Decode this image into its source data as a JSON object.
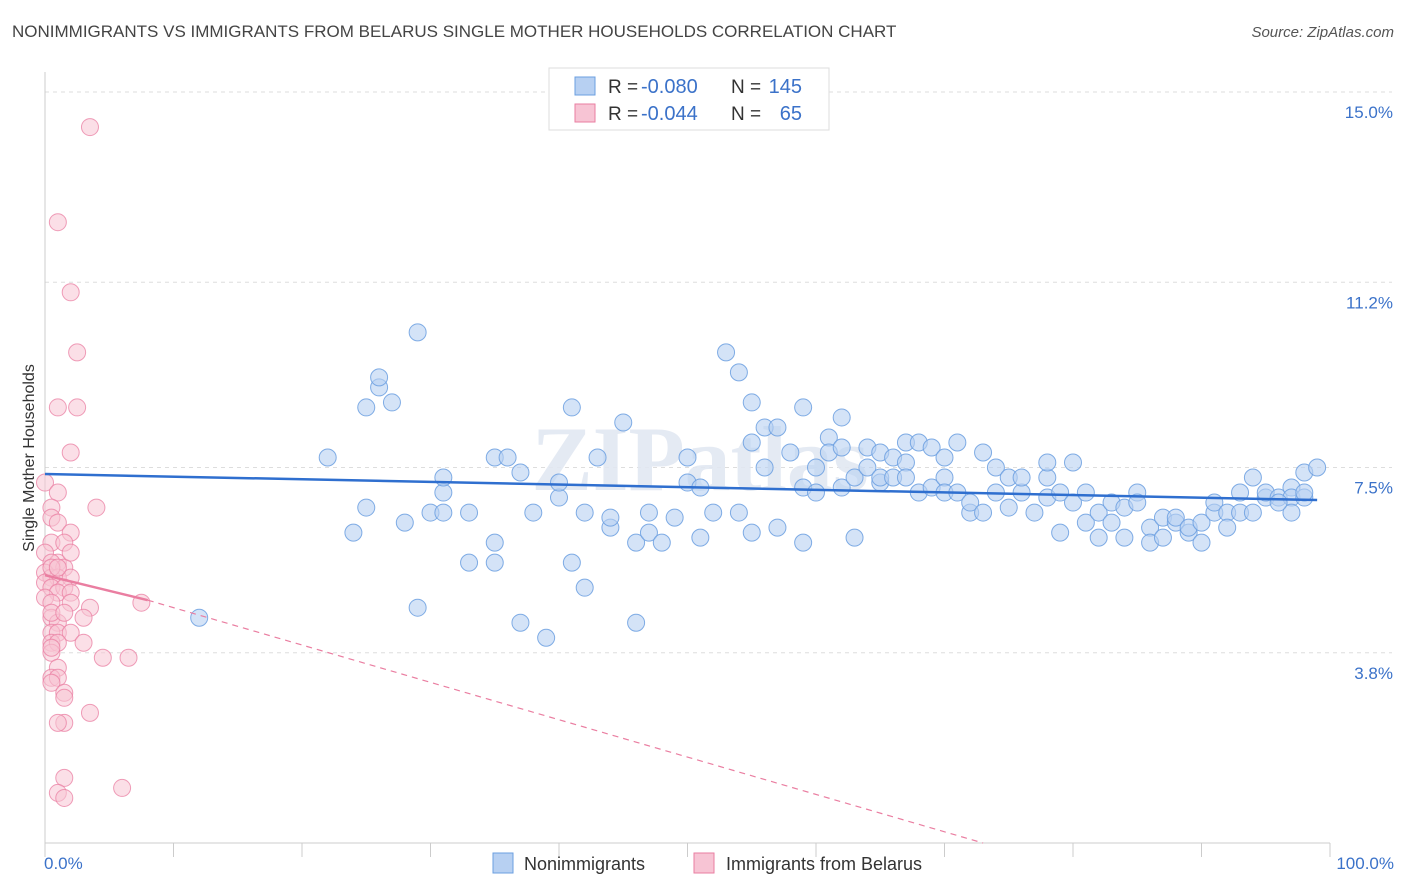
{
  "chart_data": {
    "type": "scatter",
    "title": "NONIMMIGRANTS VS IMMIGRANTS FROM BELARUS SINGLE MOTHER HOUSEHOLDS CORRELATION CHART",
    "source": "Source: ZipAtlas.com",
    "ylabel": "Single Mother Households",
    "xlabel": "",
    "xlim": [
      0,
      100
    ],
    "ylim": [
      0,
      15.4
    ],
    "x_tick_labels": [
      "0.0%",
      "100.0%"
    ],
    "y_ticks": [
      {
        "value": 3.8,
        "label": "3.8%"
      },
      {
        "value": 7.5,
        "label": "7.5%"
      },
      {
        "value": 11.2,
        "label": "11.2%"
      },
      {
        "value": 15.0,
        "label": "15.0%"
      }
    ],
    "colors": {
      "nonimmigrants": "#6b9fe0",
      "nonimmigrants_fill": "#b7d0f2",
      "belarus": "#ea7ea1",
      "belarus_fill": "#f7c4d4",
      "value_text": "#3b72c9",
      "grid": "#dddddd"
    },
    "legend_stats": [
      {
        "r_label": "R =",
        "r_value": "-0.080",
        "n_label": "N =",
        "n_value": "145"
      },
      {
        "r_label": "R =",
        "r_value": "-0.044",
        "n_label": "N =",
        "n_value": "65"
      }
    ],
    "watermark": "ZIPatlas",
    "series": [
      {
        "name": "Nonimmigrants",
        "trend": {
          "x": [
            0,
            99
          ],
          "y": [
            7.37,
            6.85
          ]
        },
        "points": [
          [
            12,
            4.5
          ],
          [
            22,
            7.7
          ],
          [
            24,
            6.2
          ],
          [
            25,
            6.7
          ],
          [
            25,
            8.7
          ],
          [
            26,
            9.1
          ],
          [
            26,
            9.3
          ],
          [
            27,
            8.8
          ],
          [
            28,
            6.4
          ],
          [
            29,
            10.2
          ],
          [
            29,
            4.7
          ],
          [
            30,
            6.6
          ],
          [
            31,
            7.0
          ],
          [
            31,
            7.3
          ],
          [
            31,
            6.6
          ],
          [
            33,
            5.6
          ],
          [
            33,
            6.6
          ],
          [
            35,
            6.0
          ],
          [
            35,
            5.6
          ],
          [
            35,
            7.7
          ],
          [
            36,
            7.7
          ],
          [
            37,
            4.4
          ],
          [
            37,
            7.4
          ],
          [
            38,
            6.6
          ],
          [
            39,
            4.1
          ],
          [
            40,
            6.9
          ],
          [
            40,
            7.2
          ],
          [
            41,
            8.7
          ],
          [
            41,
            5.6
          ],
          [
            42,
            5.1
          ],
          [
            42,
            6.6
          ],
          [
            43,
            7.7
          ],
          [
            44,
            6.3
          ],
          [
            44,
            6.5
          ],
          [
            45,
            8.4
          ],
          [
            46,
            4.4
          ],
          [
            46,
            6.0
          ],
          [
            47,
            6.2
          ],
          [
            47,
            6.6
          ],
          [
            48,
            6.0
          ],
          [
            49,
            6.5
          ],
          [
            50,
            7.2
          ],
          [
            50,
            7.7
          ],
          [
            51,
            6.1
          ],
          [
            51,
            7.1
          ],
          [
            52,
            6.6
          ],
          [
            53,
            9.8
          ],
          [
            54,
            9.4
          ],
          [
            54,
            6.6
          ],
          [
            55,
            6.2
          ],
          [
            55,
            8.8
          ],
          [
            55,
            8.0
          ],
          [
            56,
            7.5
          ],
          [
            56,
            8.3
          ],
          [
            57,
            6.3
          ],
          [
            57,
            8.3
          ],
          [
            58,
            7.8
          ],
          [
            59,
            8.7
          ],
          [
            59,
            6.0
          ],
          [
            59,
            7.1
          ],
          [
            60,
            7.5
          ],
          [
            60,
            7.0
          ],
          [
            61,
            8.1
          ],
          [
            61,
            7.8
          ],
          [
            62,
            8.5
          ],
          [
            62,
            7.1
          ],
          [
            62,
            7.9
          ],
          [
            63,
            7.3
          ],
          [
            63,
            6.1
          ],
          [
            64,
            7.9
          ],
          [
            64,
            7.5
          ],
          [
            65,
            7.2
          ],
          [
            65,
            7.3
          ],
          [
            65,
            7.8
          ],
          [
            66,
            7.3
          ],
          [
            66,
            7.7
          ],
          [
            67,
            7.6
          ],
          [
            67,
            8.0
          ],
          [
            67,
            7.3
          ],
          [
            68,
            8.0
          ],
          [
            68,
            7.0
          ],
          [
            69,
            7.9
          ],
          [
            69,
            7.1
          ],
          [
            70,
            7.3
          ],
          [
            70,
            7.7
          ],
          [
            70,
            7.0
          ],
          [
            71,
            8.0
          ],
          [
            71,
            7.0
          ],
          [
            72,
            6.6
          ],
          [
            72,
            6.8
          ],
          [
            73,
            6.6
          ],
          [
            73,
            7.8
          ],
          [
            74,
            7.5
          ],
          [
            74,
            7.0
          ],
          [
            75,
            7.3
          ],
          [
            75,
            6.7
          ],
          [
            76,
            7.0
          ],
          [
            76,
            7.3
          ],
          [
            77,
            6.6
          ],
          [
            78,
            7.3
          ],
          [
            78,
            6.9
          ],
          [
            78,
            7.6
          ],
          [
            79,
            6.2
          ],
          [
            79,
            7.0
          ],
          [
            80,
            7.6
          ],
          [
            80,
            6.8
          ],
          [
            81,
            6.4
          ],
          [
            81,
            7.0
          ],
          [
            82,
            6.6
          ],
          [
            82,
            6.1
          ],
          [
            83,
            6.4
          ],
          [
            83,
            6.8
          ],
          [
            84,
            6.1
          ],
          [
            84,
            6.7
          ],
          [
            85,
            7.0
          ],
          [
            85,
            6.8
          ],
          [
            86,
            6.3
          ],
          [
            86,
            6.0
          ],
          [
            87,
            6.1
          ],
          [
            87,
            6.5
          ],
          [
            88,
            6.4
          ],
          [
            88,
            6.5
          ],
          [
            89,
            6.2
          ],
          [
            89,
            6.3
          ],
          [
            90,
            6.4
          ],
          [
            90,
            6.0
          ],
          [
            91,
            6.6
          ],
          [
            91,
            6.8
          ],
          [
            92,
            6.6
          ],
          [
            92,
            6.3
          ],
          [
            93,
            7.0
          ],
          [
            93,
            6.6
          ],
          [
            94,
            6.6
          ],
          [
            94,
            7.3
          ],
          [
            95,
            6.9
          ],
          [
            95,
            7.0
          ],
          [
            96,
            6.9
          ],
          [
            97,
            7.1
          ],
          [
            97,
            6.9
          ],
          [
            98,
            6.9
          ],
          [
            98,
            7.4
          ],
          [
            98,
            7.0
          ],
          [
            97,
            6.6
          ],
          [
            96,
            6.8
          ],
          [
            99,
            7.5
          ]
        ]
      },
      {
        "name": "Immigrants from Belarus",
        "trend": {
          "x": [
            0,
            8
          ],
          "y": [
            5.35,
            4.85
          ]
        },
        "trend_dashed": {
          "x": [
            8,
            73
          ],
          "y": [
            4.85,
            0.0
          ]
        },
        "points": [
          [
            3.5,
            14.3
          ],
          [
            1,
            12.4
          ],
          [
            2,
            11.0
          ],
          [
            2.5,
            9.8
          ],
          [
            1,
            8.7
          ],
          [
            2.5,
            8.7
          ],
          [
            2,
            7.8
          ],
          [
            0,
            7.2
          ],
          [
            1,
            7.0
          ],
          [
            0.5,
            6.7
          ],
          [
            4,
            6.7
          ],
          [
            0.5,
            6.5
          ],
          [
            1,
            6.4
          ],
          [
            2,
            6.2
          ],
          [
            0.5,
            6.0
          ],
          [
            1.5,
            6.0
          ],
          [
            0,
            5.8
          ],
          [
            1,
            5.6
          ],
          [
            0.5,
            5.6
          ],
          [
            1.5,
            5.5
          ],
          [
            0,
            5.4
          ],
          [
            0.5,
            5.3
          ],
          [
            1,
            5.3
          ],
          [
            2,
            5.3
          ],
          [
            0,
            5.2
          ],
          [
            0.5,
            5.1
          ],
          [
            1.5,
            5.1
          ],
          [
            1,
            5.0
          ],
          [
            2,
            5.0
          ],
          [
            0,
            4.9
          ],
          [
            0.5,
            4.8
          ],
          [
            2,
            4.8
          ],
          [
            3.5,
            4.7
          ],
          [
            7.5,
            4.8
          ],
          [
            0.5,
            4.5
          ],
          [
            1,
            4.4
          ],
          [
            3,
            4.5
          ],
          [
            0.5,
            4.2
          ],
          [
            1,
            4.2
          ],
          [
            2,
            4.2
          ],
          [
            0.5,
            4.0
          ],
          [
            1,
            4.0
          ],
          [
            3,
            4.0
          ],
          [
            0.5,
            3.8
          ],
          [
            4.5,
            3.7
          ],
          [
            6.5,
            3.7
          ],
          [
            1,
            3.5
          ],
          [
            0.5,
            3.3
          ],
          [
            1,
            3.3
          ],
          [
            0.5,
            3.2
          ],
          [
            1.5,
            3.0
          ],
          [
            3.5,
            2.6
          ],
          [
            1.5,
            2.9
          ],
          [
            1.5,
            2.4
          ],
          [
            1,
            2.4
          ],
          [
            1.5,
            1.3
          ],
          [
            1,
            1.0
          ],
          [
            1.5,
            0.9
          ],
          [
            6,
            1.1
          ],
          [
            0.5,
            5.5
          ],
          [
            1,
            5.5
          ],
          [
            0.5,
            4.6
          ],
          [
            1.5,
            4.6
          ],
          [
            0.5,
            3.9
          ],
          [
            2,
            5.8
          ]
        ]
      }
    ],
    "legend_bottom": [
      "Nonimmigrants",
      "Immigrants from Belarus"
    ]
  }
}
